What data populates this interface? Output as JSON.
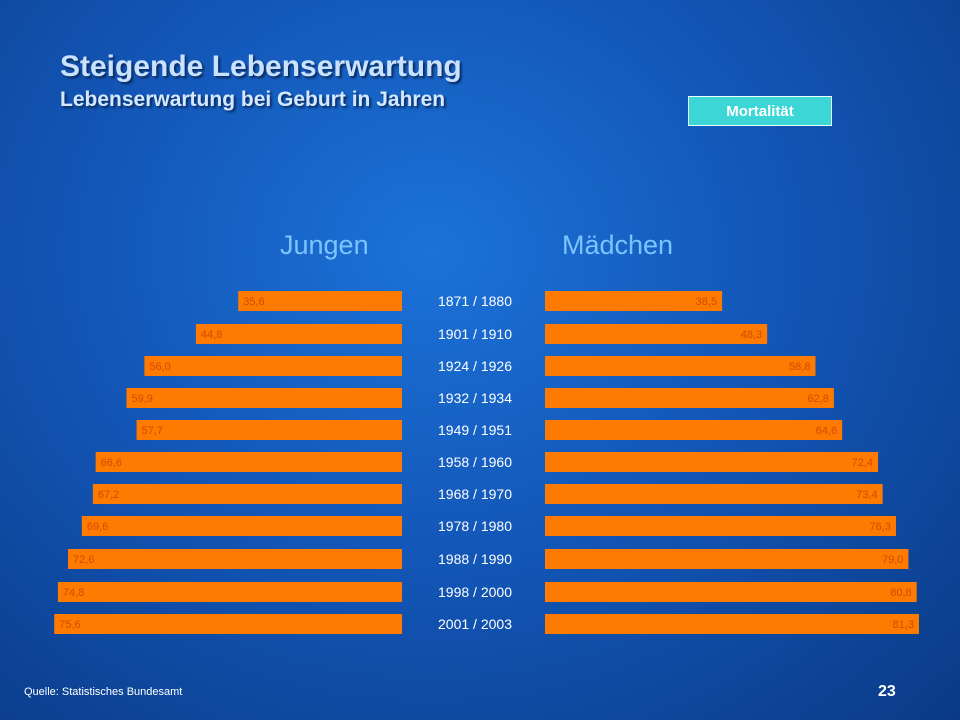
{
  "colors": {
    "bar": "#ff7a00",
    "value_label": "#d24a00",
    "button": "#3cd6d6"
  },
  "header": {
    "title": "Steigende Lebenserwartung",
    "subtitle": "Lebenserwartung bei Geburt in Jahren"
  },
  "button": {
    "label": "Mortalität"
  },
  "footer": {
    "source": "Quelle: Statistisches Bundesamt",
    "page": "23"
  },
  "chart_data": {
    "type": "bar",
    "categories": [
      "1871 / 1880",
      "1901 / 1910",
      "1924 / 1926",
      "1932 / 1934",
      "1949 / 1951",
      "1958 / 1960",
      "1968 / 1970",
      "1978 / 1980",
      "1988 / 1990",
      "1998 / 2000",
      "2001 / 2003"
    ],
    "series": [
      {
        "name": "Jungen",
        "values": [
          35.6,
          44.8,
          56.0,
          59.9,
          57.7,
          66.6,
          67.2,
          69.6,
          72.6,
          74.8,
          75.6
        ],
        "labels": [
          "35,6",
          "44,8",
          "56,0",
          "59,9",
          "57,7",
          "66,6",
          "67,2",
          "69,6",
          "72,6",
          "74,8",
          "75,6"
        ]
      },
      {
        "name": "Mädchen",
        "values": [
          38.5,
          48.3,
          58.8,
          62.8,
          64.6,
          72.4,
          73.4,
          76.3,
          79.0,
          80.8,
          81.3
        ],
        "labels": [
          "38,5",
          "48,3",
          "58,8",
          "62,8",
          "64,6",
          "72,4",
          "73,4",
          "76,3",
          "79,0",
          "80,8",
          "81,3"
        ]
      }
    ],
    "grid": false
  }
}
